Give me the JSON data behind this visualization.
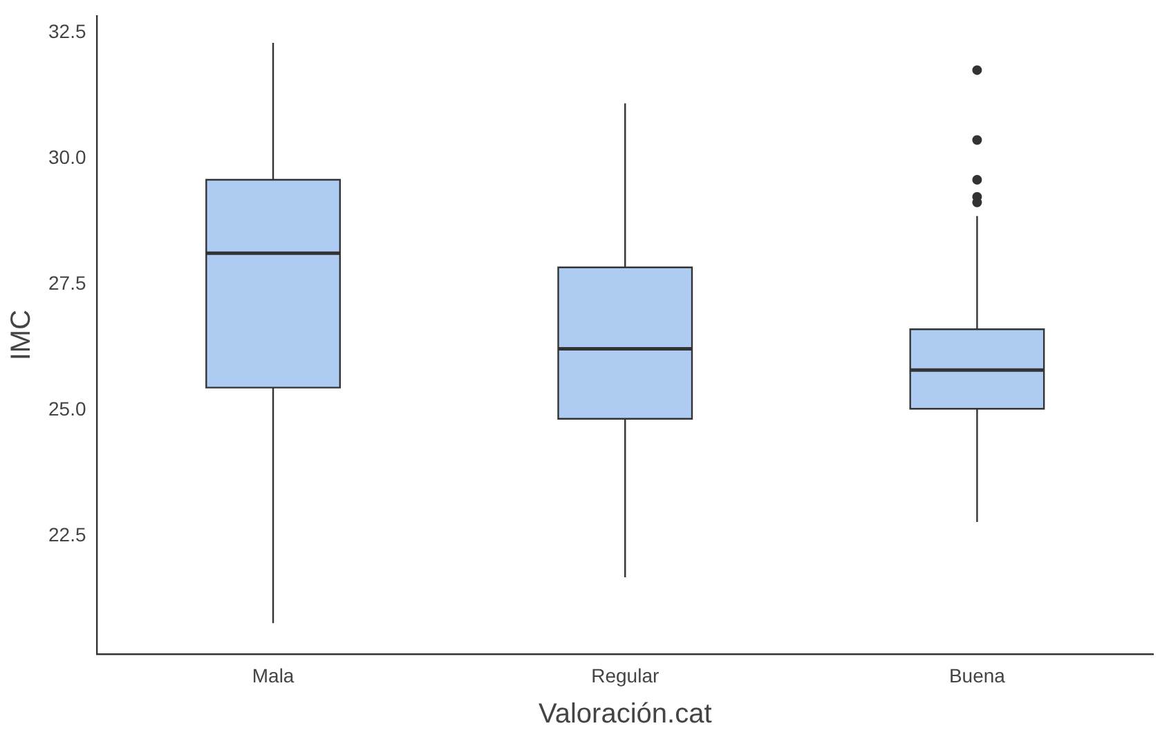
{
  "chart_data": {
    "type": "box",
    "xlabel": "Valoración.cat",
    "ylabel": "IMC",
    "categories": [
      "Mala",
      "Regular",
      "Buena"
    ],
    "color": "#aecbf2",
    "ylim": [
      20.15,
      32.84
    ],
    "yticks": [
      {
        "value": 22.5,
        "label": "22.5"
      },
      {
        "value": 25,
        "label": "25.0"
      },
      {
        "value": 27.5,
        "label": "27.5"
      },
      {
        "value": 30,
        "label": "30.0"
      },
      {
        "value": 32.5,
        "label": "32.5"
      }
    ],
    "grid": false,
    "legend": false,
    "boxes": [
      {
        "low": 20.77,
        "q1": 25.45,
        "median": 28.12,
        "q3": 29.58,
        "high": 32.3
      },
      {
        "low": 21.68,
        "q1": 24.83,
        "median": 26.22,
        "q3": 27.84,
        "high": 31.1
      },
      {
        "low": 22.78,
        "q1": 25.03,
        "median": 25.8,
        "q3": 26.61,
        "high": 28.86,
        "outliers": [
          31.76,
          30.37,
          29.58,
          29.24,
          29.13
        ]
      }
    ]
  }
}
